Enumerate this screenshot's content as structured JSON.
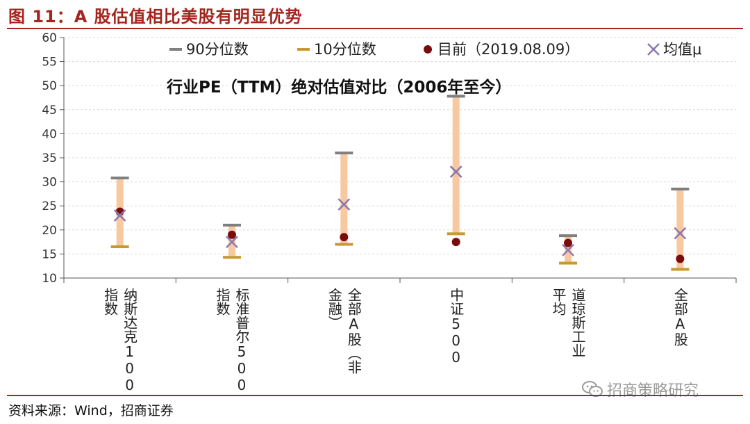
{
  "figure": {
    "title": "图 11：A 股估值相比美股有明显优势",
    "source": "资料来源：Wind，招商证券",
    "watermark": "招商策略研究",
    "watermark_icon": "wechat-icon"
  },
  "colors": {
    "brand": "#a4251e",
    "range_bar": "#f8c9a0",
    "p90": "#7f7f7f",
    "p10": "#c79a2e",
    "current": "#7b0c0c",
    "mean": "#8a78b0",
    "grid": "#d9d9d9"
  },
  "chart_data": {
    "type": "range",
    "title": "行业PE（TTM）绝对估值对比（2006年至今）",
    "categories": [
      [
        "纳斯达克100",
        "指数"
      ],
      [
        "标准普尔500",
        "指数"
      ],
      [
        "全部A股（非",
        "金融）"
      ],
      [
        "中证500"
      ],
      [
        "道琼斯工业",
        "平均"
      ],
      [
        "全部A股"
      ]
    ],
    "series": [
      {
        "name": "90分位数",
        "values": [
          30.8,
          21.0,
          36.0,
          47.8,
          18.8,
          28.5
        ]
      },
      {
        "name": "10分位数",
        "values": [
          16.5,
          14.3,
          17.0,
          19.2,
          13.1,
          11.8
        ]
      },
      {
        "name": "目前（2019.08.09）",
        "values": [
          23.8,
          19.0,
          18.5,
          17.5,
          17.3,
          14.0
        ]
      },
      {
        "name": "均值μ",
        "values": [
          23.0,
          17.5,
          25.3,
          32.1,
          15.8,
          19.3
        ]
      }
    ],
    "ylim": [
      10,
      60
    ],
    "yticks": [
      10,
      15,
      20,
      25,
      30,
      35,
      40,
      45,
      50,
      55,
      60
    ],
    "grid": true,
    "legend_position": "top"
  }
}
